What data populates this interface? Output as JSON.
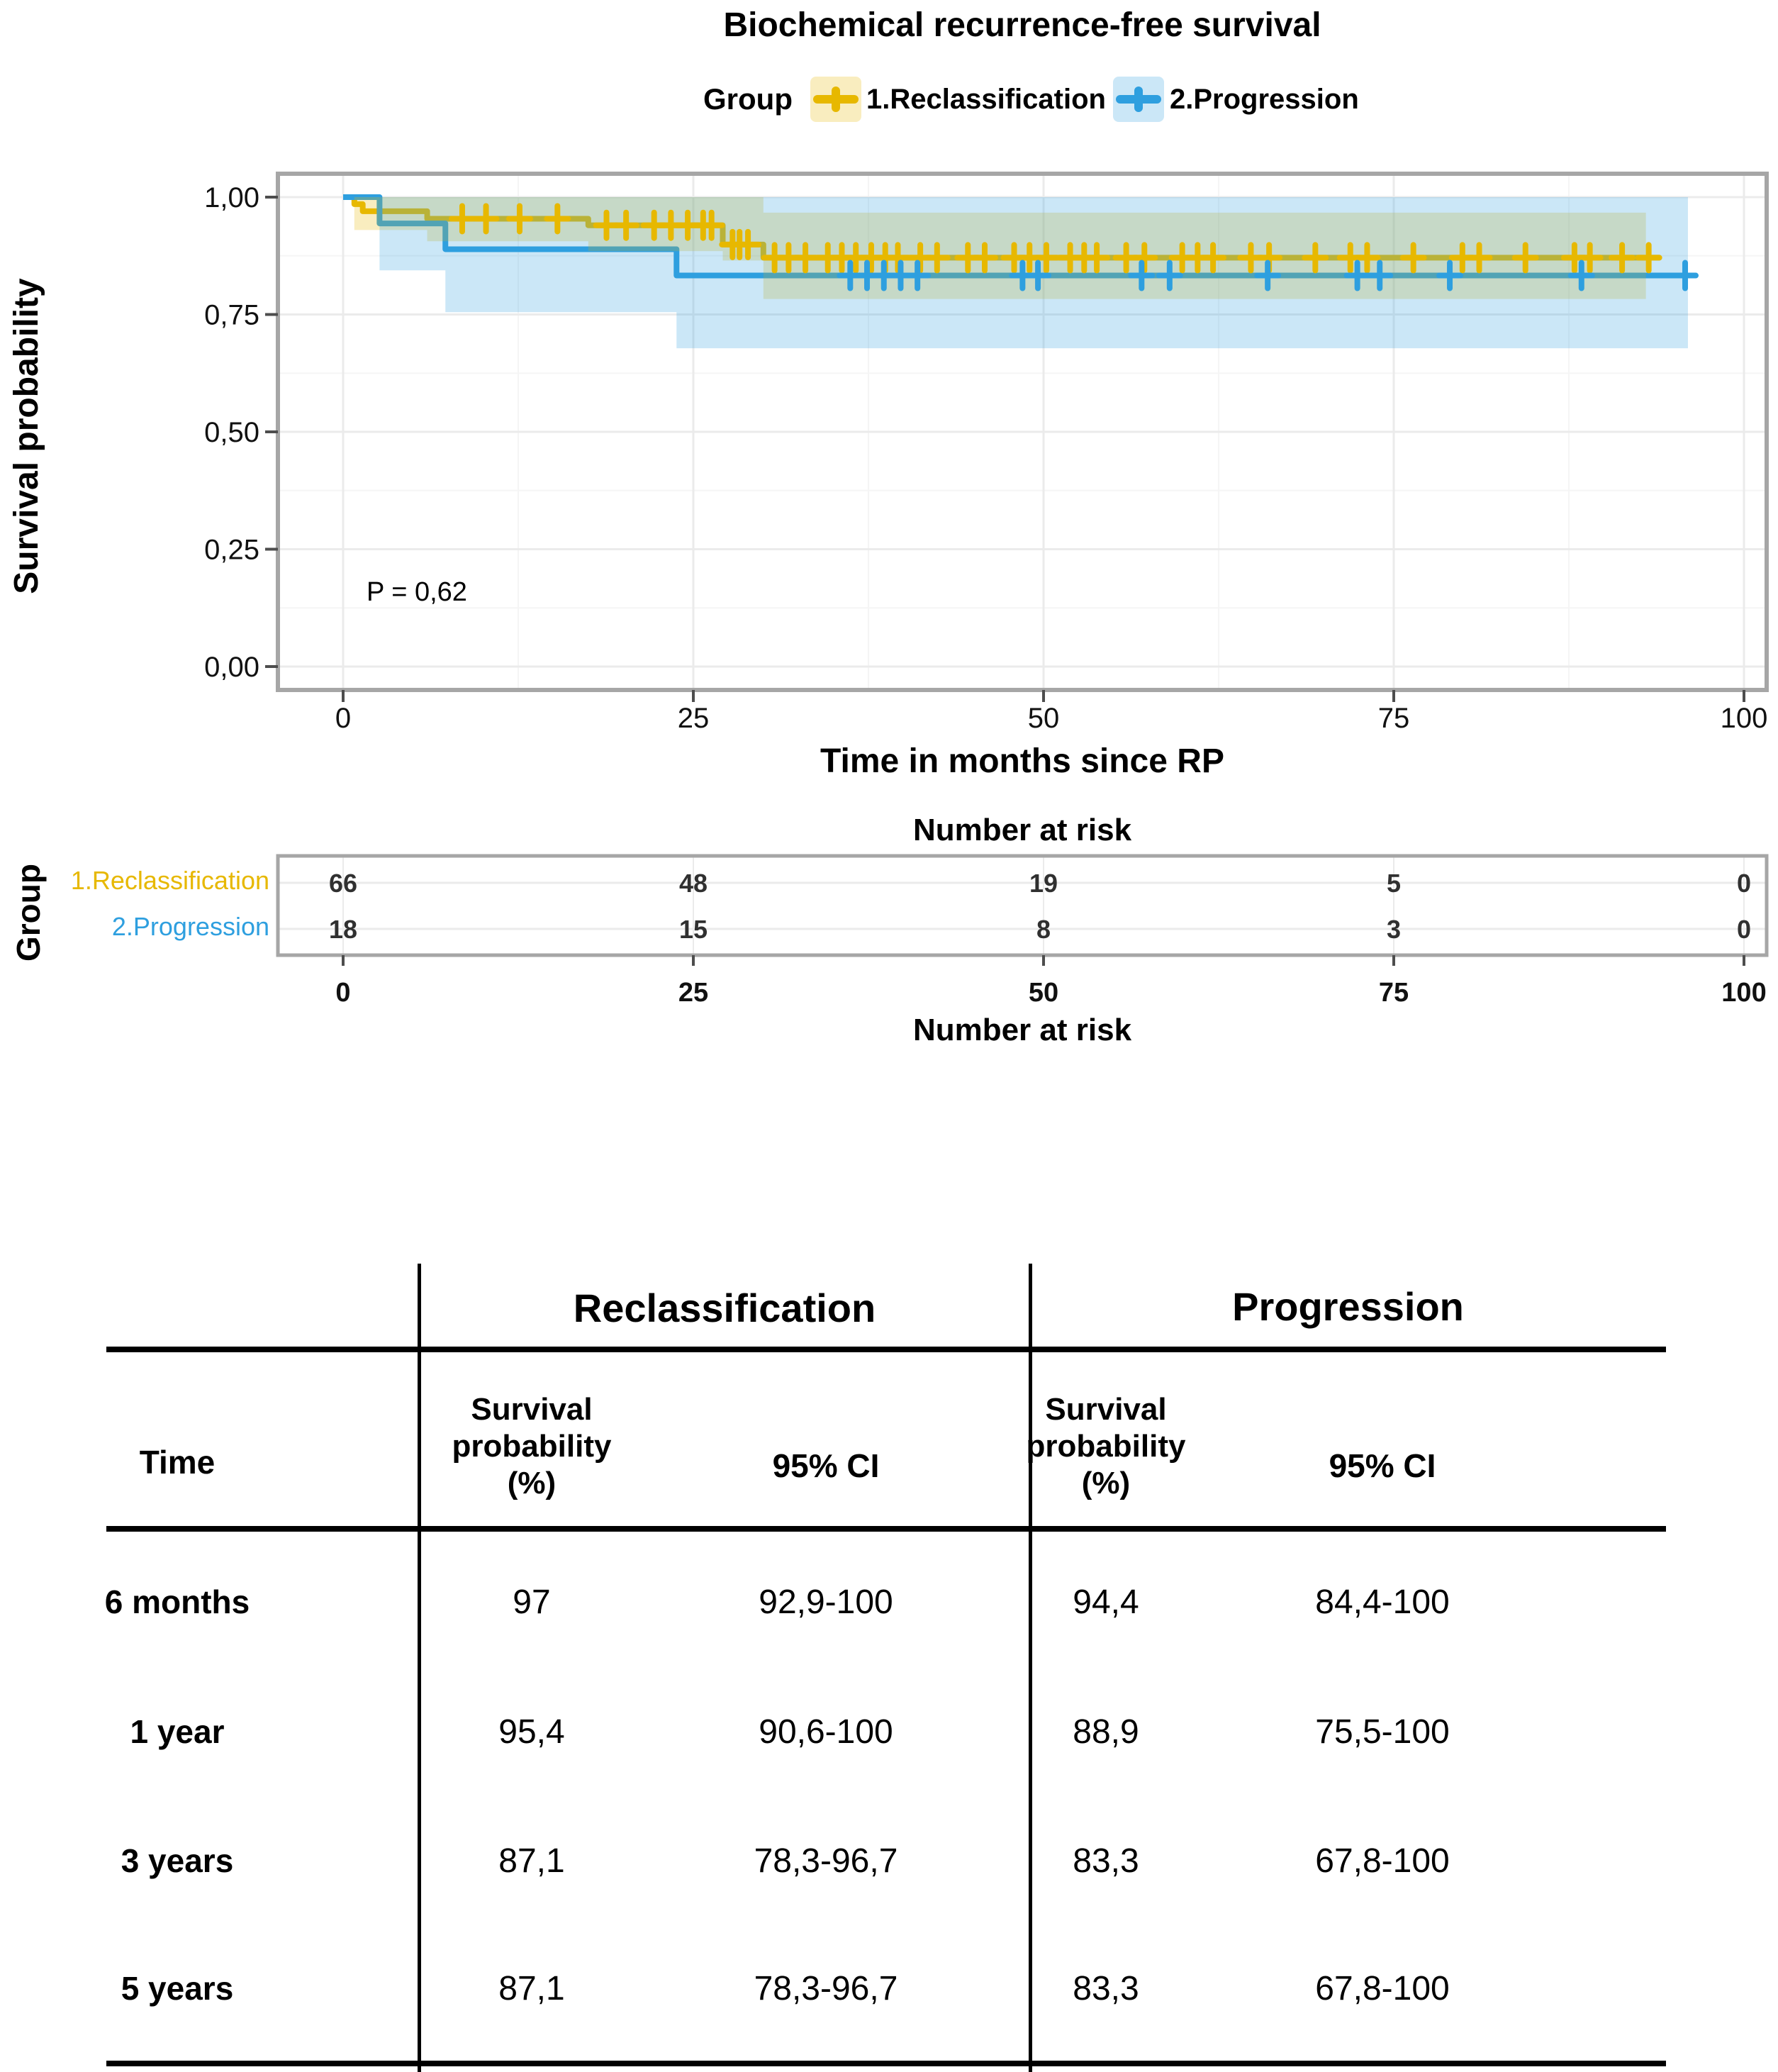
{
  "figure_title": "Biochemical recurrence-free survival",
  "legend": {
    "title": "Group",
    "items": [
      {
        "label": "1.Reclassification",
        "color": "#E7B800",
        "fill": "rgba(231,184,0,0.25)"
      },
      {
        "label": "2.Progression",
        "color": "#2E9FDF",
        "fill": "rgba(46,159,223,0.25)"
      }
    ]
  },
  "y_axis": {
    "title": "Survival probability",
    "tick_labels": [
      "0,00",
      "0,25",
      "0,50",
      "0,75",
      "1,00"
    ],
    "tick_values": [
      0,
      0.25,
      0.5,
      0.75,
      1
    ]
  },
  "x_axis": {
    "title": "Time in months since RP",
    "tick_labels": [
      "0",
      "25",
      "50",
      "75",
      "100"
    ],
    "tick_values": [
      0,
      25,
      50,
      75,
      100
    ]
  },
  "annotations": {
    "p_value": "P = 0,62"
  },
  "colors": {
    "reclassification": "#E7B800",
    "progression": "#2E9FDF",
    "reclassification_ci_fill": "rgba(231,184,0,0.25)",
    "progression_ci_fill": "rgba(46,159,223,0.25)",
    "grid_major": "#ebebeb",
    "grid_minor": "#f5f5f5",
    "panel_border": "#a6a6a6",
    "tick_mark": "#4d4d4d",
    "risk_number": "#303030"
  },
  "chart_data": {
    "type": "line",
    "subtype": "kaplan_meier",
    "title": "Biochemical recurrence-free survival",
    "xlabel": "Time in months since RP",
    "ylabel": "Survival probability",
    "xlim": [
      0,
      100
    ],
    "ylim": [
      0,
      1
    ],
    "x_major_ticks": [
      0,
      25,
      50,
      75,
      100
    ],
    "x_minor_ticks": [
      12.5,
      37.5,
      62.5,
      87.5
    ],
    "y_major_ticks": [
      0,
      0.25,
      0.5,
      0.75,
      1
    ],
    "y_minor_ticks": [
      0.125,
      0.375,
      0.625,
      0.875
    ],
    "grid": true,
    "legend_position": "top",
    "p_value_annotation": "P = 0,62",
    "series": [
      {
        "name": "1.Reclassification",
        "color": "#E7B800",
        "ci_fill": "rgba(231,184,0,0.25)",
        "steps": [
          [
            0,
            1
          ],
          [
            0.8,
            0.985
          ],
          [
            1.4,
            0.97
          ],
          [
            6,
            0.954
          ],
          [
            17.5,
            0.94
          ],
          [
            27.1,
            0.899
          ],
          [
            30,
            0.871
          ]
        ],
        "end_time": 94,
        "censor_times": [
          8.5,
          10.2,
          12.6,
          15.3,
          18.8,
          20.2,
          22.2,
          23.4,
          24.6,
          25.7,
          26.3,
          27.8,
          28.3,
          28.9,
          30.8,
          31.8,
          33,
          34.6,
          35.6,
          36.6,
          37.7,
          38.7,
          39.6,
          41.2,
          42.4,
          44.6,
          45.8,
          47.9,
          49,
          50.2,
          51.9,
          52.9,
          53.8,
          55.9,
          57.2,
          59.9,
          61,
          62.1,
          64.8,
          66.1,
          69.4,
          71.9,
          73.1,
          76.4,
          79.9,
          81.1,
          84.4,
          87.9,
          89,
          91.3,
          93.2
        ],
        "ci_segments": [
          [
            0.8,
            0.93,
            1
          ],
          [
            6,
            0.906,
            1
          ],
          [
            17.5,
            0.885,
            1
          ],
          [
            27.1,
            0.865,
            1
          ],
          [
            30,
            0.783,
            0.967
          ]
        ],
        "ci_end_time": 93,
        "survival_probability_pct": {
          "6_months": "97",
          "1_year": "95,4",
          "3_years": "87,1",
          "5_years": "87,1"
        }
      },
      {
        "name": "2.Progression",
        "color": "#2E9FDF",
        "ci_fill": "rgba(46,159,223,0.25)",
        "steps": [
          [
            0,
            1
          ],
          [
            2.6,
            0.944
          ],
          [
            7.3,
            0.889
          ],
          [
            23.8,
            0.833
          ]
        ],
        "end_time": 96.5,
        "censor_times": [
          36.2,
          37.4,
          38.6,
          39.8,
          41,
          48.5,
          49.6,
          57,
          59,
          66,
          72.4,
          74,
          79,
          88.4,
          95.8
        ],
        "ci_segments": [
          [
            2.6,
            0.844,
            1
          ],
          [
            7.3,
            0.755,
            1
          ],
          [
            23.8,
            0.678,
            1
          ]
        ],
        "ci_end_time": 96,
        "survival_probability_pct": {
          "6_months": "94,4",
          "1_year": "88,9",
          "3_years": "83,3",
          "5_years": "83,3"
        }
      }
    ]
  },
  "risk_table": {
    "title": "Number at risk",
    "x_axis_title": "Number at risk",
    "group_axis_label": "Group",
    "time_points": [
      0,
      25,
      50,
      75,
      100
    ],
    "tick_labels": [
      "0",
      "25",
      "50",
      "75",
      "100"
    ],
    "rows": [
      {
        "label": "1.Reclassification",
        "color": "#E7B800",
        "counts": [
          "66",
          "48",
          "19",
          "5",
          "0"
        ]
      },
      {
        "label": "2.Progression",
        "color": "#2E9FDF",
        "counts": [
          "18",
          "15",
          "8",
          "3",
          "0"
        ]
      }
    ]
  },
  "summary_table": {
    "groups": [
      "Reclassification",
      "Progression"
    ],
    "row_header": "Time",
    "columns": {
      "probability": "Survival\nprobability\n(%)",
      "ci": "95% CI"
    },
    "rows": [
      {
        "time": "6 months",
        "reclassification": {
          "probability": "97",
          "ci": "92,9-100"
        },
        "progression": {
          "probability": "94,4",
          "ci": "84,4-100"
        }
      },
      {
        "time": "1 year",
        "reclassification": {
          "probability": "95,4",
          "ci": "90,6-100"
        },
        "progression": {
          "probability": "88,9",
          "ci": "75,5-100"
        }
      },
      {
        "time": "3 years",
        "reclassification": {
          "probability": "87,1",
          "ci": "78,3-96,7"
        },
        "progression": {
          "probability": "83,3",
          "ci": "67,8-100"
        }
      },
      {
        "time": "5 years",
        "reclassification": {
          "probability": "87,1",
          "ci": "78,3-96,7"
        },
        "progression": {
          "probability": "83,3",
          "ci": "67,8-100"
        }
      }
    ]
  }
}
